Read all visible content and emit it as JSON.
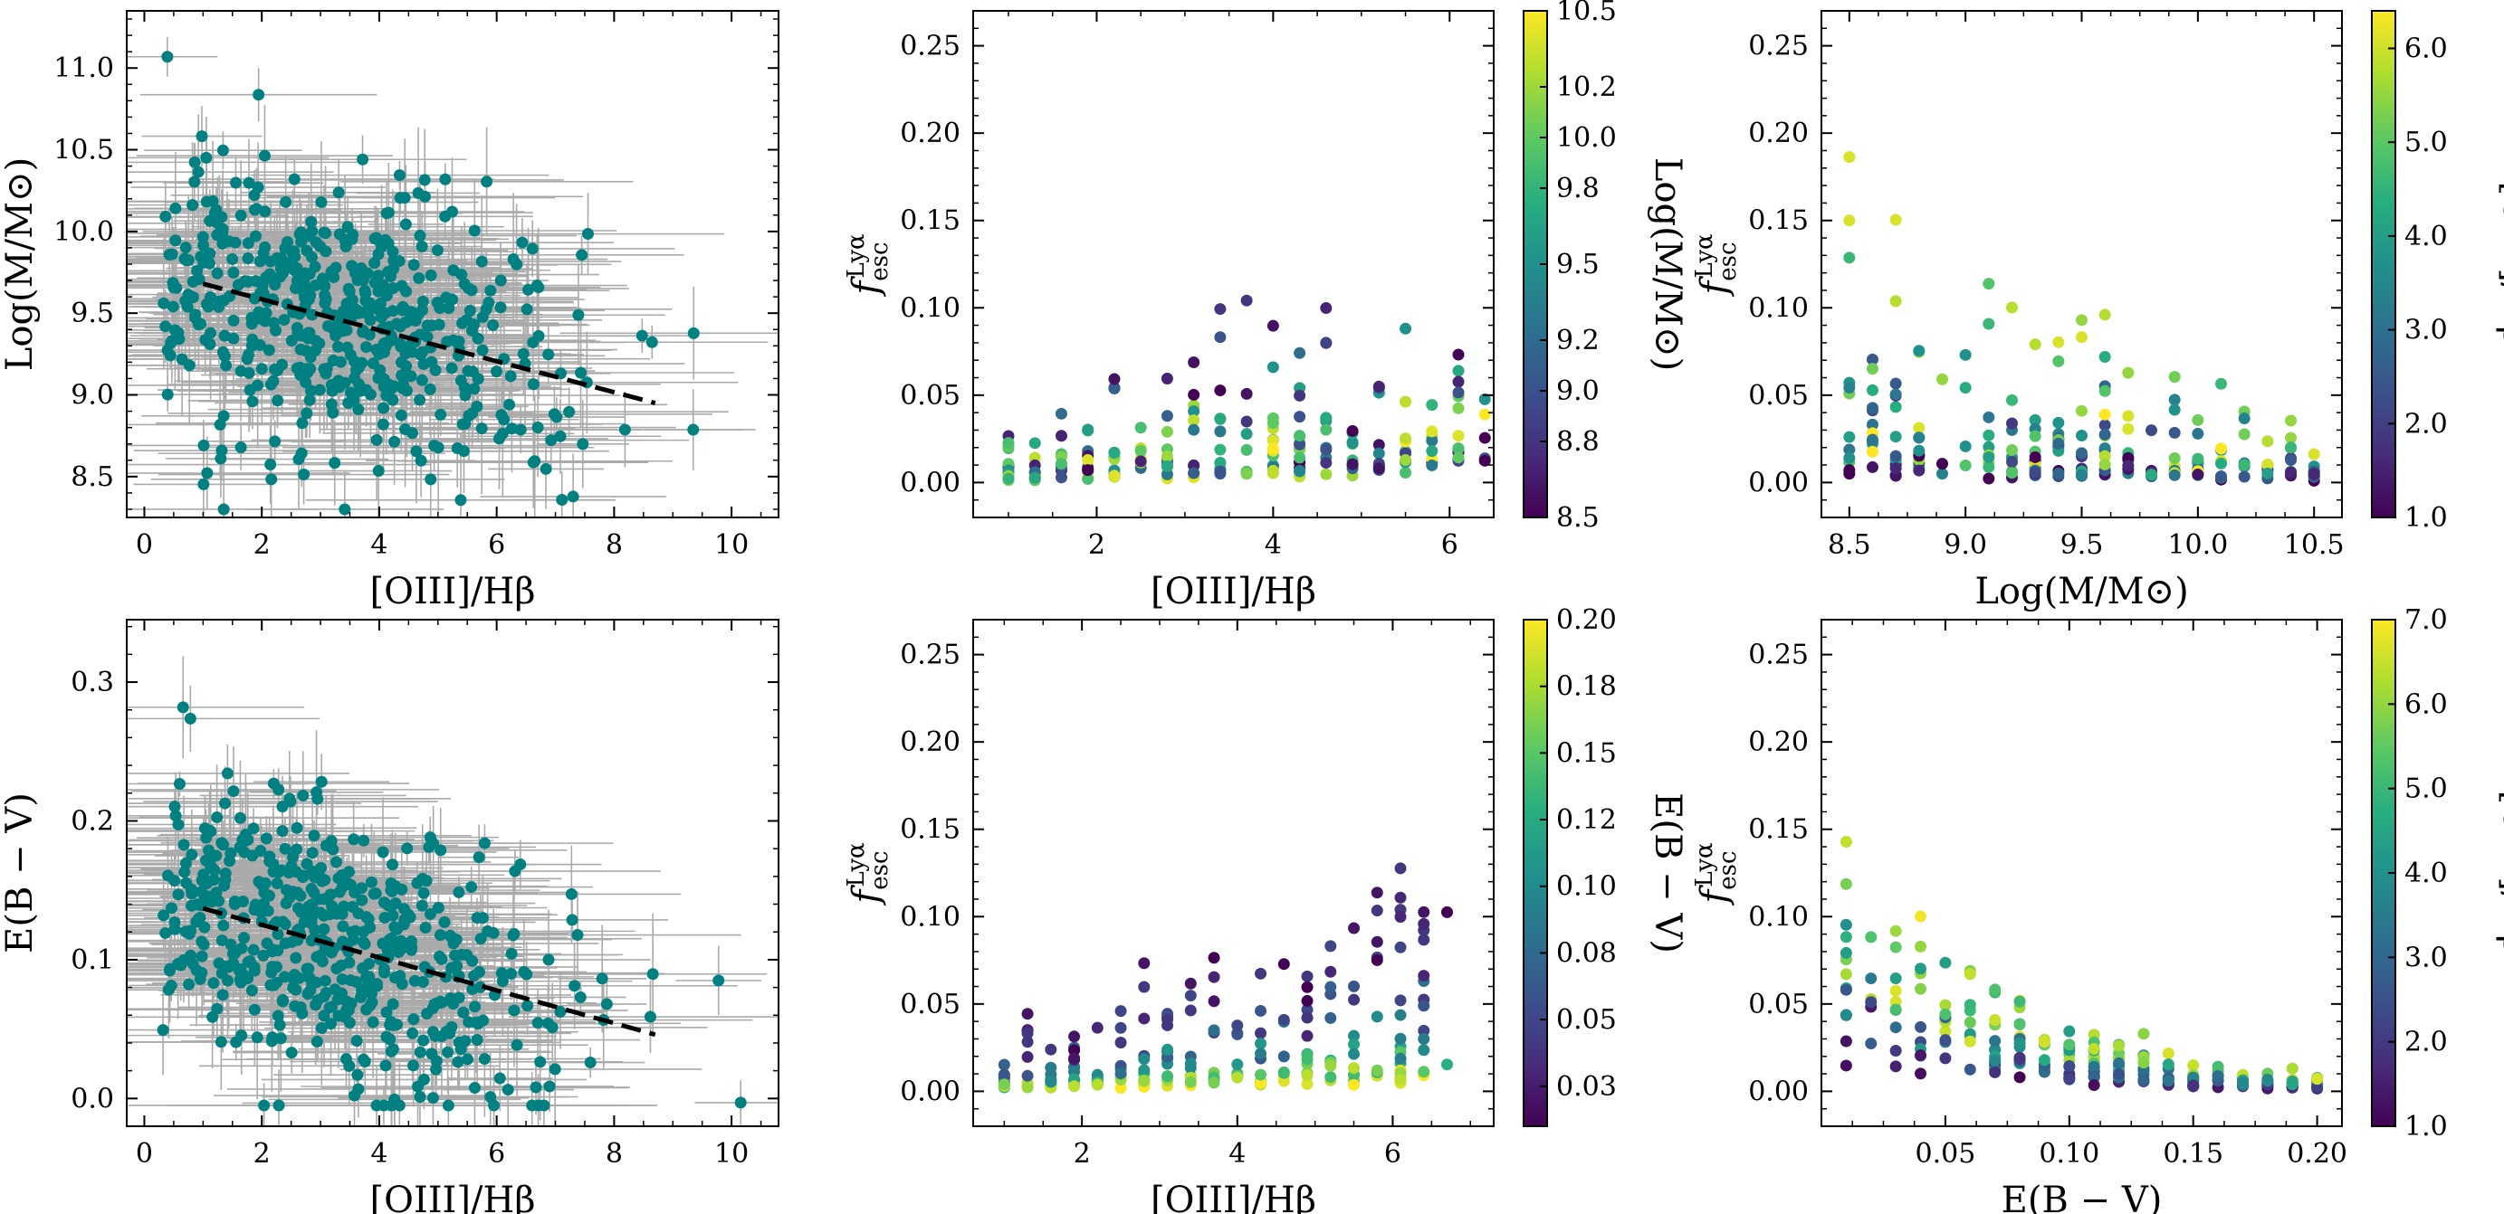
{
  "chart_data": [
    {
      "type": "scatter",
      "id": "p1",
      "xlabel": "[OIII]/Hβ",
      "ylabel": "Log(M/M⊙)",
      "xlim": [
        -0.3,
        10.8
      ],
      "ylim": [
        8.25,
        11.35
      ],
      "xticks": [
        0,
        2,
        4,
        6,
        8,
        10
      ],
      "yticks": [
        8.5,
        9.0,
        9.5,
        10.0,
        10.5,
        11.0
      ],
      "ytick_labels": [
        "8.5",
        "9.0",
        "9.5",
        "10.0",
        "10.5",
        "11.0"
      ],
      "errorbars": true,
      "marker_color": "#008080",
      "errorbar_color": "#aaaaaa",
      "fit_line": {
        "x": [
          1.0,
          8.7
        ],
        "y": [
          9.68,
          8.95
        ]
      },
      "cloud": {
        "x_mean": 3.4,
        "x_sd": 1.8,
        "y_mean": 9.4,
        "y_sd": 0.55,
        "n": 560
      }
    },
    {
      "type": "scatter",
      "id": "p2",
      "xlabel": "[OIII]/Hβ",
      "ylabel": "f_esc^{Lyα}",
      "xlim": [
        0.6,
        6.5
      ],
      "ylim": [
        -0.02,
        0.27
      ],
      "xticks": [
        2,
        4,
        6
      ],
      "yticks": [
        0.0,
        0.05,
        0.1,
        0.15,
        0.2,
        0.25
      ],
      "ytick_labels": [
        "0.00",
        "0.05",
        "0.10",
        "0.15",
        "0.20",
        "0.25"
      ],
      "color_var": "mass",
      "colorbar": {
        "label": "Log(M/M⊙)",
        "min": 8.5,
        "max": 10.5,
        "ticks": [
          8.5,
          8.8,
          9.0,
          9.2,
          9.5,
          9.8,
          10.0,
          10.2,
          10.5
        ],
        "tick_labels": [
          "8.5",
          "8.8",
          "9.0",
          "9.2",
          "9.5",
          "9.8",
          "10.0",
          "10.2",
          "10.5"
        ]
      }
    },
    {
      "type": "scatter",
      "id": "p3",
      "xlabel": "Log(M/M⊙)",
      "ylabel": "f_esc^{Lyα}",
      "xlim": [
        8.38,
        10.62
      ],
      "ylim": [
        -0.02,
        0.27
      ],
      "xticks": [
        8.5,
        9.0,
        9.5,
        10.0,
        10.5
      ],
      "xtick_labels": [
        "8.5",
        "9.0",
        "9.5",
        "10.0",
        "10.5"
      ],
      "yticks": [
        0.0,
        0.05,
        0.1,
        0.15,
        0.2,
        0.25
      ],
      "ytick_labels": [
        "0.00",
        "0.05",
        "0.10",
        "0.15",
        "0.20",
        "0.25"
      ],
      "color_var": "o3",
      "colorbar": {
        "label": "[OIII]/Hβ",
        "min": 1.0,
        "max": 6.4,
        "ticks": [
          1.0,
          2.0,
          3.0,
          4.0,
          5.0,
          6.0
        ],
        "tick_labels": [
          "1.0",
          "2.0",
          "3.0",
          "4.0",
          "5.0",
          "6.0"
        ]
      }
    },
    {
      "type": "scatter",
      "id": "p4",
      "xlabel": "[OIII]/Hβ",
      "ylabel": "E(B − V)",
      "xlim": [
        -0.3,
        10.8
      ],
      "ylim": [
        -0.02,
        0.345
      ],
      "xticks": [
        0,
        2,
        4,
        6,
        8,
        10
      ],
      "yticks": [
        0.0,
        0.1,
        0.2,
        0.3
      ],
      "ytick_labels": [
        "0.0",
        "0.1",
        "0.2",
        "0.3"
      ],
      "errorbars": true,
      "marker_color": "#008080",
      "errorbar_color": "#aaaaaa",
      "fit_line": {
        "x": [
          1.0,
          8.7
        ],
        "y": [
          0.137,
          0.046
        ]
      },
      "cloud": {
        "x_mean": 3.3,
        "x_sd": 1.9,
        "y_mean": 0.1,
        "y_sd": 0.06,
        "n": 560
      }
    },
    {
      "type": "scatter",
      "id": "p5",
      "xlabel": "[OIII]/Hβ",
      "ylabel": "f_esc^{Lyα}",
      "xlim": [
        0.6,
        7.3
      ],
      "ylim": [
        -0.02,
        0.27
      ],
      "xticks": [
        2,
        4,
        6
      ],
      "yticks": [
        0.0,
        0.05,
        0.1,
        0.15,
        0.2,
        0.25
      ],
      "ytick_labels": [
        "0.00",
        "0.05",
        "0.10",
        "0.15",
        "0.20",
        "0.25"
      ],
      "color_var": "ebv",
      "colorbar": {
        "label": "E(B − V)",
        "min": 0.01,
        "max": 0.2,
        "ticks": [
          0.025,
          0.05,
          0.075,
          0.1,
          0.125,
          0.15,
          0.175,
          0.2
        ],
        "tick_labels": [
          "0.03",
          "0.05",
          "0.08",
          "0.10",
          "0.12",
          "0.15",
          "0.18",
          "0.20"
        ]
      }
    },
    {
      "type": "scatter",
      "id": "p6",
      "xlabel": "E(B − V)",
      "ylabel": "f_esc^{Lyα}",
      "xlim": [
        0.0,
        0.21
      ],
      "ylim": [
        -0.02,
        0.27
      ],
      "xticks": [
        0.05,
        0.1,
        0.15,
        0.2
      ],
      "xtick_labels": [
        "0.05",
        "0.10",
        "0.15",
        "0.20"
      ],
      "yticks": [
        0.0,
        0.05,
        0.1,
        0.15,
        0.2,
        0.25
      ],
      "ytick_labels": [
        "0.00",
        "0.05",
        "0.10",
        "0.15",
        "0.20",
        "0.25"
      ],
      "color_var": "o3",
      "colorbar": {
        "label": "[OIII]/Hβ",
        "min": 1.0,
        "max": 7.0,
        "ticks": [
          1.0,
          2.0,
          3.0,
          4.0,
          5.0,
          6.0,
          7.0
        ],
        "tick_labels": [
          "1.0",
          "2.0",
          "3.0",
          "4.0",
          "5.0",
          "6.0",
          "7.0"
        ]
      }
    }
  ],
  "grid_model": {
    "o3_values": [
      1.0,
      1.3,
      1.6,
      1.9,
      2.2,
      2.5,
      2.8,
      3.1,
      3.4,
      3.7,
      4.0,
      4.3,
      4.6,
      4.9,
      5.2,
      5.5,
      5.8,
      6.1,
      6.4
    ],
    "mass_values": [
      8.5,
      8.6,
      8.7,
      8.8,
      8.9,
      9.0,
      9.1,
      9.2,
      9.3,
      9.4,
      9.5,
      9.6,
      9.7,
      9.8,
      9.9,
      10.0,
      10.1,
      10.2,
      10.3,
      10.4,
      10.5
    ],
    "ebv_values": [
      0.01,
      0.02,
      0.03,
      0.04,
      0.05,
      0.06,
      0.07,
      0.08,
      0.09,
      0.1,
      0.11,
      0.12,
      0.13,
      0.14,
      0.15,
      0.16,
      0.17,
      0.18,
      0.19,
      0.2
    ]
  },
  "colors": {
    "marker": "#008080",
    "errorbar": "#aaaaaa",
    "colormap": "viridis"
  }
}
